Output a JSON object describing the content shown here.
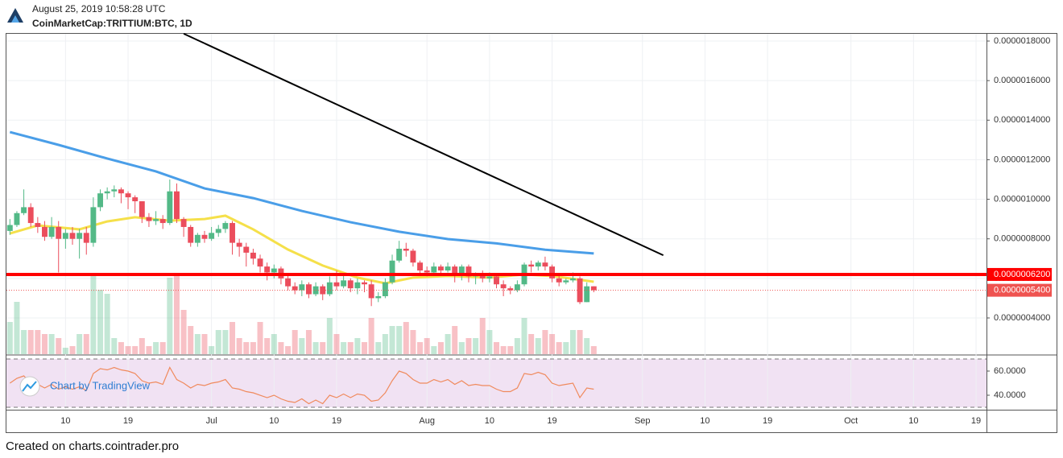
{
  "header": {
    "timestamp": "August 25, 2019 10:58:28 UTC",
    "symbol": "CoinMarketCap:TRITTIUM:BTC, 1D"
  },
  "watermark": "Chart by TradingView",
  "footer": "Created on charts.cointrader.pro",
  "chart_data": [
    {
      "type": "candlestick",
      "up_color": "#53b987",
      "down_color": "#eb4d5c",
      "grid": true,
      "x": [
        "2019-06-02",
        "2019-06-03",
        "2019-06-04",
        "2019-06-05",
        "2019-06-06",
        "2019-06-07",
        "2019-06-08",
        "2019-06-09",
        "2019-06-10",
        "2019-06-11",
        "2019-06-12",
        "2019-06-13",
        "2019-06-14",
        "2019-06-15",
        "2019-06-16",
        "2019-06-17",
        "2019-06-18",
        "2019-06-19",
        "2019-06-20",
        "2019-06-21",
        "2019-06-22",
        "2019-06-23",
        "2019-06-24",
        "2019-06-25",
        "2019-06-26",
        "2019-06-27",
        "2019-06-28",
        "2019-06-29",
        "2019-06-30",
        "2019-07-01",
        "2019-07-02",
        "2019-07-03",
        "2019-07-04",
        "2019-07-05",
        "2019-07-06",
        "2019-07-07",
        "2019-07-08",
        "2019-07-09",
        "2019-07-10",
        "2019-07-11",
        "2019-07-12",
        "2019-07-13",
        "2019-07-14",
        "2019-07-15",
        "2019-07-16",
        "2019-07-17",
        "2019-07-18",
        "2019-07-19",
        "2019-07-20",
        "2019-07-21",
        "2019-07-22",
        "2019-07-23",
        "2019-07-24",
        "2019-07-25",
        "2019-07-26",
        "2019-07-27",
        "2019-07-28",
        "2019-07-29",
        "2019-07-30",
        "2019-07-31",
        "2019-08-01",
        "2019-08-02",
        "2019-08-03",
        "2019-08-04",
        "2019-08-05",
        "2019-08-06",
        "2019-08-07",
        "2019-08-08",
        "2019-08-09",
        "2019-08-10",
        "2019-08-11",
        "2019-08-12",
        "2019-08-13",
        "2019-08-14",
        "2019-08-15",
        "2019-08-16",
        "2019-08-17",
        "2019-08-18",
        "2019-08-19",
        "2019-08-20",
        "2019-08-21",
        "2019-08-22",
        "2019-08-23",
        "2019-08-24",
        "2019-08-25"
      ],
      "open": [
        8.4e-07,
        8.7e-07,
        9.3e-07,
        9.6e-07,
        8.8e-07,
        8.6e-07,
        8.1e-07,
        8.6e-07,
        8e-07,
        8.3e-07,
        8e-07,
        8.3e-07,
        7.8e-07,
        9.6e-07,
        1.03e-06,
        1.04e-06,
        1.05e-06,
        1.03e-06,
        1.01e-06,
        9.9e-07,
        9.1e-07,
        8.9e-07,
        9e-07,
        8.8e-07,
        1.04e-06,
        9e-07,
        8.6e-07,
        7.8e-07,
        8.2e-07,
        8e-07,
        8.3e-07,
        8.5e-07,
        8.8e-07,
        7.8e-07,
        7.6e-07,
        7.3e-07,
        7e-07,
        6.6e-07,
        6.3e-07,
        6.5e-07,
        6e-07,
        5.6e-07,
        5.4e-07,
        5.7e-07,
        5.2e-07,
        5.6e-07,
        5.2e-07,
        5.8e-07,
        5.6e-07,
        5.9e-07,
        5.5e-07,
        5.8e-07,
        5.7e-07,
        5e-07,
        5.1e-07,
        5.8e-07,
        6.9e-07,
        7.5e-07,
        7.4e-07,
        6.8e-07,
        6.4e-07,
        6.3e-07,
        6.6e-07,
        6.4e-07,
        6.6e-07,
        6.2e-07,
        6.6e-07,
        6.1e-07,
        6.2e-07,
        6e-07,
        6.1e-07,
        5.7e-07,
        5.5e-07,
        5.4e-07,
        5.7e-07,
        6.7e-07,
        6.6e-07,
        6.8e-07,
        6.6e-07,
        6e-07,
        5.8e-07,
        5.9e-07,
        6e-07,
        4.8e-07,
        5.6e-07
      ],
      "close": [
        8.7e-07,
        9.3e-07,
        9.6e-07,
        8.8e-07,
        8.6e-07,
        8.1e-07,
        8.6e-07,
        8e-07,
        8.3e-07,
        8e-07,
        8.3e-07,
        7.8e-07,
        9.6e-07,
        1.03e-06,
        1.04e-06,
        1.05e-06,
        1.03e-06,
        1.01e-06,
        9.9e-07,
        9.1e-07,
        8.9e-07,
        9e-07,
        8.8e-07,
        1.04e-06,
        9e-07,
        8.6e-07,
        7.8e-07,
        8.2e-07,
        8e-07,
        8.3e-07,
        8.5e-07,
        8.8e-07,
        7.8e-07,
        7.6e-07,
        7.3e-07,
        7e-07,
        6.6e-07,
        6.3e-07,
        6.5e-07,
        6e-07,
        5.6e-07,
        5.4e-07,
        5.7e-07,
        5.2e-07,
        5.6e-07,
        5.2e-07,
        5.8e-07,
        5.6e-07,
        5.9e-07,
        5.5e-07,
        5.8e-07,
        5.7e-07,
        5e-07,
        5.1e-07,
        5.8e-07,
        6.9e-07,
        7.5e-07,
        7.4e-07,
        6.8e-07,
        6.4e-07,
        6.3e-07,
        6.6e-07,
        6.4e-07,
        6.6e-07,
        6.2e-07,
        6.6e-07,
        6.1e-07,
        6.2e-07,
        6e-07,
        6.1e-07,
        5.7e-07,
        5.5e-07,
        5.4e-07,
        5.7e-07,
        6.7e-07,
        6.6e-07,
        6.8e-07,
        6.6e-07,
        6e-07,
        5.8e-07,
        5.9e-07,
        6e-07,
        4.8e-07,
        5.6e-07,
        5.4e-07
      ],
      "high": [
        9e-07,
        9.4e-07,
        1.05e-06,
        9.8e-07,
        9.1e-07,
        8.9e-07,
        9.1e-07,
        8.9e-07,
        8.5e-07,
        8.6e-07,
        8.5e-07,
        8.6e-07,
        1.01e-06,
        1.05e-06,
        1.06e-06,
        1.07e-06,
        1.06e-06,
        1.04e-06,
        1.02e-06,
        9.9e-07,
        9.3e-07,
        9.4e-07,
        9.2e-07,
        1.1e-06,
        1.08e-06,
        9.1e-07,
        8.7e-07,
        8.3e-07,
        8.4e-07,
        8.6e-07,
        8.7e-07,
        8.9e-07,
        8.9e-07,
        8e-07,
        7.8e-07,
        7.5e-07,
        7.2e-07,
        6.8e-07,
        6.7e-07,
        6.6e-07,
        6.2e-07,
        5.8e-07,
        5.9e-07,
        5.8e-07,
        5.8e-07,
        5.7e-07,
        6.1e-07,
        6.4e-07,
        6.2e-07,
        6e-07,
        6e-07,
        5.9e-07,
        5.9e-07,
        5.3e-07,
        6e-07,
        7.2e-07,
        7.9e-07,
        7.8e-07,
        7.5e-07,
        6.9e-07,
        6.6e-07,
        6.8e-07,
        6.7e-07,
        6.8e-07,
        6.7e-07,
        6.7e-07,
        6.7e-07,
        6.3e-07,
        6.4e-07,
        6.3e-07,
        6.2e-07,
        5.9e-07,
        5.6e-07,
        5.9e-07,
        6.8e-07,
        6.9e-07,
        6.9e-07,
        7.1e-07,
        6.7e-07,
        6.2e-07,
        6e-07,
        6.3e-07,
        6.1e-07,
        5.8e-07,
        5.6e-07
      ],
      "low": [
        8.2e-07,
        8.6e-07,
        9.2e-07,
        8.6e-07,
        8.3e-07,
        7.9e-07,
        8e-07,
        6.3e-07,
        7.5e-07,
        7.7e-07,
        7e-07,
        7.2e-07,
        7.6e-07,
        9.4e-07,
        1e-06,
        1.01e-06,
        9.8e-07,
        9.5e-07,
        9.3e-07,
        8.8e-07,
        8.6e-07,
        8.7e-07,
        8.5e-07,
        8.7e-07,
        8.8e-07,
        8.1e-07,
        7.6e-07,
        7.6e-07,
        7.8e-07,
        7.9e-07,
        8.1e-07,
        8.3e-07,
        7.2e-07,
        7.1e-07,
        6.6e-07,
        6.7e-07,
        6.3e-07,
        5.9e-07,
        6e-07,
        5.7e-07,
        5.4e-07,
        5.2e-07,
        5.1e-07,
        5e-07,
        5.1e-07,
        4.9e-07,
        5.1e-07,
        5.4e-07,
        5.5e-07,
        5.3e-07,
        5.2e-07,
        5.3e-07,
        4.6e-07,
        4.8e-07,
        5e-07,
        5.7e-07,
        6.8e-07,
        7.1e-07,
        6.6e-07,
        6.2e-07,
        6.1e-07,
        6.2e-07,
        6.2e-07,
        6.3e-07,
        5.8e-07,
        5.9e-07,
        5.8e-07,
        5.7e-07,
        5.8e-07,
        5.8e-07,
        5.5e-07,
        5.1e-07,
        5.2e-07,
        5.3e-07,
        5.6e-07,
        6.3e-07,
        6.4e-07,
        6.4e-07,
        5.8e-07,
        5.6e-07,
        5.7e-07,
        5.8e-07,
        4.7e-07,
        4.8e-07,
        5.3e-07
      ],
      "volume": [
        40,
        65,
        30,
        30,
        30,
        25,
        25,
        20,
        8,
        10,
        25,
        25,
        97,
        80,
        75,
        20,
        15,
        10,
        10,
        20,
        10,
        15,
        15,
        95,
        97,
        55,
        35,
        25,
        25,
        10,
        30,
        30,
        40,
        20,
        15,
        15,
        40,
        20,
        25,
        15,
        10,
        30,
        20,
        30,
        15,
        15,
        45,
        25,
        15,
        15,
        20,
        15,
        45,
        15,
        25,
        35,
        35,
        40,
        30,
        15,
        20,
        10,
        15,
        25,
        35,
        15,
        20,
        20,
        45,
        30,
        15,
        10,
        10,
        20,
        45,
        25,
        20,
        30,
        25,
        15,
        15,
        30,
        30,
        20,
        10
      ],
      "vlim": [
        0,
        100
      ],
      "lines": [
        {
          "color": "#4a9ee8",
          "x": [
            "2019-06-02",
            "2019-06-09",
            "2019-06-16",
            "2019-06-23",
            "2019-06-30",
            "2019-07-07",
            "2019-07-14",
            "2019-07-21",
            "2019-07-28",
            "2019-08-04",
            "2019-08-11",
            "2019-08-18",
            "2019-08-25"
          ],
          "values": [
            1.34e-06,
            1.275e-06,
            1.206e-06,
            1.141e-06,
            1.055e-06,
            1.006e-06,
            9.41e-07,
            8.84e-07,
            8.36e-07,
            7.99e-07,
            7.77e-07,
            7.45e-07,
            7.26e-07
          ]
        },
        {
          "color": "#f5e04a",
          "x": [
            "2019-06-02",
            "2019-06-06",
            "2019-06-12",
            "2019-06-16",
            "2019-06-20",
            "2019-06-25",
            "2019-06-30",
            "2019-07-03",
            "2019-07-07",
            "2019-07-12",
            "2019-07-17",
            "2019-07-22",
            "2019-07-26",
            "2019-07-30",
            "2019-08-04",
            "2019-08-10",
            "2019-08-15",
            "2019-08-19",
            "2019-08-25"
          ],
          "values": [
            8.27e-07,
            8.68e-07,
            8.48e-07,
            8.88e-07,
            9.09e-07,
            8.92e-07,
            9e-07,
            9.17e-07,
            8.48e-07,
            7.46e-07,
            6.65e-07,
            6.04e-07,
            5.75e-07,
            6.04e-07,
            6.12e-07,
            6.04e-07,
            6.2e-07,
            6.12e-07,
            5.83e-07
          ]
        }
      ],
      "trendline": {
        "color": "#000000",
        "x": [
          "2019-06-27",
          "2019-09-04"
        ],
        "values": [
          1.837e-06,
          7.17e-07
        ]
      },
      "levels": [
        {
          "value": 6.2e-07,
          "label": "0.0000006200",
          "color": "#ff0000",
          "style": "solid"
        },
        {
          "value": 5.4e-07,
          "label": "0.0000005400",
          "color": "#ef5350",
          "style": "dotted"
        }
      ],
      "xlim": [
        "2019-06-01T12:00:00Z",
        "2019-10-20T12:00:00Z"
      ],
      "xticks": [
        {
          "value": "2019-06-10",
          "label": "10"
        },
        {
          "value": "2019-06-19",
          "label": "19"
        },
        {
          "value": "2019-07-01",
          "label": "Jul"
        },
        {
          "value": "2019-07-10",
          "label": "10"
        },
        {
          "value": "2019-07-19",
          "label": "19"
        },
        {
          "value": "2019-08-01",
          "label": "Aug"
        },
        {
          "value": "2019-08-10",
          "label": "10"
        },
        {
          "value": "2019-08-19",
          "label": "19"
        },
        {
          "value": "2019-09-01",
          "label": "Sep"
        },
        {
          "value": "2019-09-10",
          "label": "10"
        },
        {
          "value": "2019-09-19",
          "label": "19"
        },
        {
          "value": "2019-10-01",
          "label": "Oct"
        },
        {
          "value": "2019-10-10",
          "label": "10"
        },
        {
          "value": "2019-10-19",
          "label": "19"
        }
      ],
      "ylim": [
        2.169e-07,
        1.8366e-06
      ],
      "yticks": [
        {
          "value": 4e-07,
          "label": "0.0000004000"
        },
        {
          "value": 6e-07,
          "label": "0.0000006000"
        },
        {
          "value": 8e-07,
          "label": "0.0000008000"
        },
        {
          "value": 1e-06,
          "label": "0.0000010000"
        },
        {
          "value": 1.2e-06,
          "label": "0.0000012000"
        },
        {
          "value": 1.4e-06,
          "label": "0.0000014000"
        },
        {
          "value": 1.6e-06,
          "label": "0.0000016000"
        },
        {
          "value": 1.8e-06,
          "label": "0.0000018000"
        }
      ]
    },
    {
      "type": "line",
      "color": "#f08a5d",
      "band_color": "#f1e2f3",
      "bands": [
        30,
        70
      ],
      "values": [
        50,
        54,
        56,
        50,
        49,
        46,
        49,
        45,
        47,
        45,
        47,
        44,
        58,
        62,
        61,
        63,
        61,
        60,
        58,
        52,
        50,
        51,
        49,
        63,
        53,
        50,
        46,
        49,
        48,
        50,
        51,
        53,
        46,
        45,
        43,
        42,
        40,
        38,
        40,
        37,
        35,
        34,
        37,
        33,
        36,
        33,
        40,
        38,
        41,
        38,
        41,
        40,
        35,
        36,
        42,
        52,
        60,
        58,
        53,
        50,
        50,
        53,
        51,
        53,
        49,
        52,
        48,
        49,
        48,
        48,
        45,
        43,
        43,
        46,
        58,
        57,
        59,
        57,
        50,
        48,
        49,
        50,
        38,
        46,
        45
      ],
      "ylim": [
        28.67,
        72.67
      ],
      "yticks": [
        {
          "value": 60,
          "label": "60.0000"
        },
        {
          "value": 40,
          "label": "40.0000"
        }
      ]
    }
  ]
}
